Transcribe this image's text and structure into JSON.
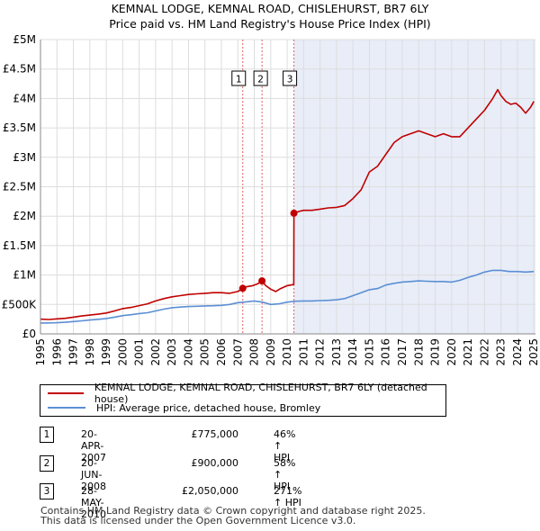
{
  "title": {
    "line1": "KEMNAL LODGE, KEMNAL ROAD, CHISLEHURST, BR7 6LY",
    "line2": "Price paid vs. HM Land Registry's House Price Index (HPI)"
  },
  "colors": {
    "property": "#c00000",
    "hpi": "#5b8fd4",
    "shade": "#e8edf8",
    "vline": "#e06060",
    "grid": "#dddddd"
  },
  "chart_data": {
    "type": "line",
    "title": "Price paid vs. HM Land Registry's House Price Index (HPI)",
    "xlabel": "",
    "ylabel": "",
    "xlim": [
      1995,
      2025.1
    ],
    "ylim": [
      0,
      5000000
    ],
    "x_ticks": [
      "1995",
      "1996",
      "1997",
      "1998",
      "1999",
      "2000",
      "2001",
      "2002",
      "2003",
      "2004",
      "2005",
      "2006",
      "2007",
      "2008",
      "2009",
      "2010",
      "2011",
      "2012",
      "2013",
      "2014",
      "2015",
      "2016",
      "2017",
      "2018",
      "2019",
      "2020",
      "2021",
      "2022",
      "2023",
      "2024",
      "2025"
    ],
    "y_ticks": [
      {
        "value": 0,
        "label": "£0"
      },
      {
        "value": 500000,
        "label": "£500K"
      },
      {
        "value": 1000000,
        "label": "£1M"
      },
      {
        "value": 1500000,
        "label": "£1.5M"
      },
      {
        "value": 2000000,
        "label": "£2M"
      },
      {
        "value": 2500000,
        "label": "£2.5M"
      },
      {
        "value": 3000000,
        "label": "£3M"
      },
      {
        "value": 3500000,
        "label": "£3.5M"
      },
      {
        "value": 4000000,
        "label": "£4M"
      },
      {
        "value": 4500000,
        "label": "£4.5M"
      },
      {
        "value": 5000000,
        "label": "£5M"
      }
    ],
    "shaded_region": [
      2010.41,
      2025.1
    ],
    "series": [
      {
        "name": "KEMNAL LODGE, KEMNAL ROAD, CHISLEHURST, BR7 6LY (detached house)",
        "color": "#c00000",
        "x": [
          1995.0,
          1995.5,
          1996.0,
          1996.5,
          1997.0,
          1997.5,
          1998.0,
          1998.5,
          1999.0,
          1999.5,
          2000.0,
          2000.5,
          2001.0,
          2001.5,
          2002.0,
          2002.5,
          2003.0,
          2003.5,
          2004.0,
          2004.5,
          2005.0,
          2005.5,
          2006.0,
          2006.5,
          2007.0,
          2007.3,
          2007.5,
          2007.9,
          2008.2,
          2008.47,
          2008.7,
          2009.0,
          2009.3,
          2009.6,
          2010.0,
          2010.4,
          2010.41,
          2010.7,
          2011.0,
          2011.5,
          2012.0,
          2012.5,
          2013.0,
          2013.5,
          2014.0,
          2014.5,
          2015.0,
          2015.5,
          2016.0,
          2016.5,
          2017.0,
          2017.5,
          2018.0,
          2018.5,
          2019.0,
          2019.5,
          2020.0,
          2020.5,
          2021.0,
          2021.5,
          2022.0,
          2022.5,
          2022.8,
          2023.0,
          2023.3,
          2023.6,
          2023.9,
          2024.2,
          2024.5,
          2024.8,
          2025.0
        ],
        "values": [
          250000,
          245000,
          255000,
          265000,
          285000,
          305000,
          320000,
          335000,
          355000,
          390000,
          430000,
          450000,
          480000,
          510000,
          560000,
          600000,
          630000,
          650000,
          670000,
          680000,
          690000,
          700000,
          700000,
          690000,
          720000,
          775000,
          800000,
          820000,
          850000,
          900000,
          820000,
          760000,
          720000,
          770000,
          820000,
          840000,
          2050000,
          2080000,
          2100000,
          2100000,
          2120000,
          2140000,
          2150000,
          2180000,
          2300000,
          2450000,
          2750000,
          2850000,
          3050000,
          3250000,
          3350000,
          3400000,
          3450000,
          3400000,
          3350000,
          3400000,
          3350000,
          3350000,
          3500000,
          3650000,
          3800000,
          4000000,
          4150000,
          4050000,
          3950000,
          3900000,
          3920000,
          3850000,
          3750000,
          3850000,
          3950000
        ]
      },
      {
        "name": "HPI: Average price, detached house, Bromley",
        "color": "#5b8fd4",
        "x": [
          1995.0,
          1995.5,
          1996.0,
          1996.5,
          1997.0,
          1997.5,
          1998.0,
          1998.5,
          1999.0,
          1999.5,
          2000.0,
          2000.5,
          2001.0,
          2001.5,
          2002.0,
          2002.5,
          2003.0,
          2003.5,
          2004.0,
          2004.5,
          2005.0,
          2005.5,
          2006.0,
          2006.5,
          2007.0,
          2007.5,
          2008.0,
          2008.5,
          2009.0,
          2009.5,
          2010.0,
          2010.5,
          2011.0,
          2011.5,
          2012.0,
          2012.5,
          2013.0,
          2013.5,
          2014.0,
          2014.5,
          2015.0,
          2015.5,
          2016.0,
          2016.5,
          2017.0,
          2017.5,
          2018.0,
          2018.5,
          2019.0,
          2019.5,
          2020.0,
          2020.5,
          2021.0,
          2021.5,
          2022.0,
          2022.5,
          2023.0,
          2023.5,
          2024.0,
          2024.5,
          2025.0
        ],
        "values": [
          185000,
          186000,
          190000,
          198000,
          210000,
          222000,
          235000,
          248000,
          262000,
          285000,
          310000,
          325000,
          345000,
          360000,
          390000,
          420000,
          445000,
          455000,
          465000,
          470000,
          475000,
          478000,
          485000,
          500000,
          530000,
          545000,
          560000,
          540000,
          500000,
          510000,
          540000,
          555000,
          560000,
          560000,
          565000,
          570000,
          580000,
          600000,
          650000,
          700000,
          750000,
          770000,
          830000,
          860000,
          880000,
          890000,
          900000,
          895000,
          890000,
          890000,
          880000,
          910000,
          960000,
          1000000,
          1050000,
          1080000,
          1080000,
          1060000,
          1060000,
          1050000,
          1060000
        ]
      }
    ],
    "sales": [
      {
        "label": "1",
        "x": 2007.3,
        "y": 775000
      },
      {
        "label": "2",
        "x": 2008.47,
        "y": 900000
      },
      {
        "label": "3",
        "x": 2010.41,
        "y": 2050000
      }
    ]
  },
  "legend": {
    "property_label": "KEMNAL LODGE, KEMNAL ROAD, CHISLEHURST, BR7 6LY (detached house)",
    "hpi_label": "HPI: Average price, detached house, Bromley"
  },
  "transactions": [
    {
      "num": "1",
      "date": "20-APR-2007",
      "price": "£775,000",
      "hpi": "46% ↑ HPI"
    },
    {
      "num": "2",
      "date": "20-JUN-2008",
      "price": "£900,000",
      "hpi": "58% ↑ HPI"
    },
    {
      "num": "3",
      "date": "28-MAY-2010",
      "price": "£2,050,000",
      "hpi": "271% ↑ HPI"
    }
  ],
  "footer": {
    "line1": "Contains HM Land Registry data © Crown copyright and database right 2025.",
    "line2": "This data is licensed under the Open Government Licence v3.0."
  }
}
